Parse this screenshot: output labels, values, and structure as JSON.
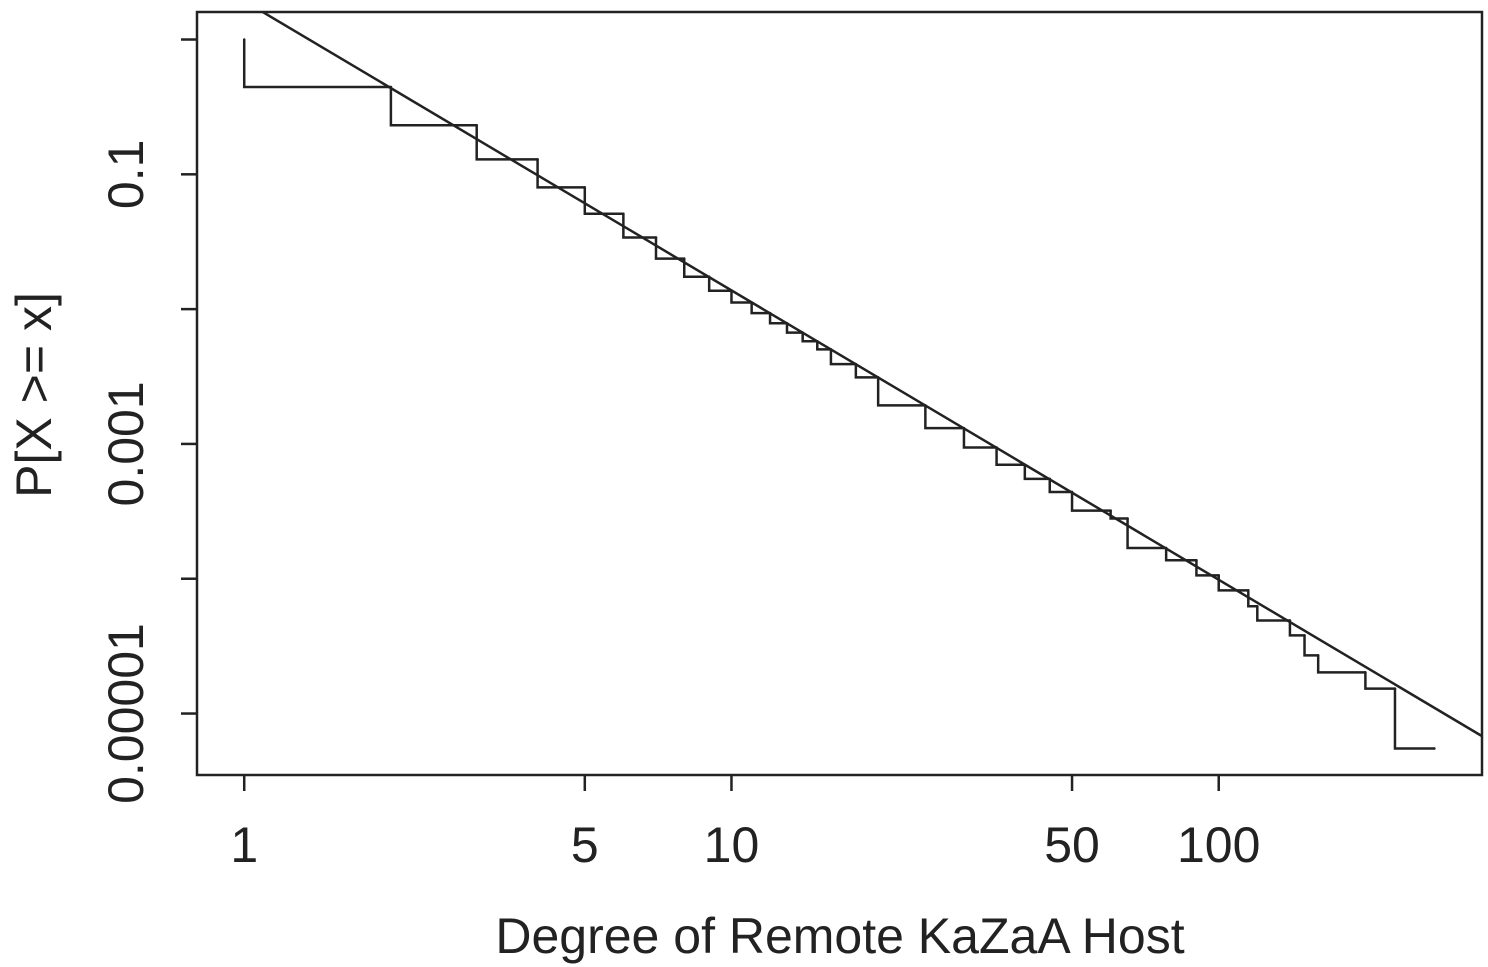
{
  "chart_data": {
    "type": "step",
    "xlabel": "Degree of Remote KaZaA Host",
    "ylabel": "P[X >= x]",
    "xscale": "log",
    "yscale": "log",
    "xlim": [
      0.8,
      347
    ],
    "ylim": [
      3.5e-06,
      1.6
    ],
    "xticks": [
      1,
      5,
      10,
      50,
      100
    ],
    "yticks": [
      {
        "value": 1,
        "label": null
      },
      0.1,
      {
        "value": 0.01,
        "label": null
      },
      0.001,
      {
        "value": 0.0001,
        "label": null
      },
      1e-05
    ],
    "series": [
      {
        "type": "step",
        "color": "#222222",
        "x": [
          1,
          2,
          3,
          4,
          5,
          6,
          7,
          8,
          9,
          10,
          11,
          12,
          13,
          14,
          15,
          16,
          18,
          20,
          25,
          30,
          35,
          40,
          45,
          50,
          60,
          65,
          78,
          90,
          100,
          115,
          120,
          140,
          150,
          160,
          200,
          230,
          277
        ],
        "values": [
          1.0,
          0.444,
          0.231,
          0.129,
          0.08,
          0.051,
          0.034,
          0.0237,
          0.0174,
          0.0137,
          0.0112,
          0.00933,
          0.00785,
          0.0067,
          0.00578,
          0.00503,
          0.00391,
          0.00312,
          0.00193,
          0.00131,
          0.00094,
          0.0007,
          0.00055,
          0.00044,
          0.00032,
          0.00028,
          0.000169,
          0.000137,
          0.000106,
          8.2e-05,
          6.25e-05,
          4.9e-05,
          3.8e-05,
          2.7e-05,
          2.02e-05,
          1.53e-05,
          5.5e-06
        ]
      },
      {
        "type": "line",
        "color": "#222222",
        "x": [
          1,
          347
        ],
        "values": [
          1.93,
          6.8e-06
        ]
      }
    ]
  }
}
